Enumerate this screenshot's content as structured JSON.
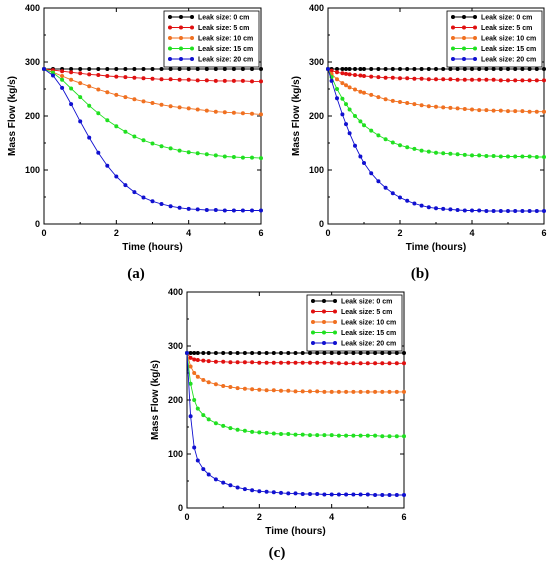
{
  "colors": {
    "0 cm": "#000000",
    "5 cm": "#e01010",
    "10 cm": "#f07020",
    "15 cm": "#20e020",
    "20 cm": "#1010d0"
  },
  "chart_data": [
    {
      "type": "line",
      "panel_label": "(a)",
      "xlabel": "Time (hours)",
      "ylabel": "Mass Flow (kg/s)",
      "xlim": [
        0,
        6
      ],
      "ylim": [
        0,
        400
      ],
      "xticks": [
        0,
        2,
        4,
        6
      ],
      "yticks": [
        0,
        100,
        200,
        300,
        400
      ],
      "legend_position": "top-right",
      "x": [
        0,
        0.25,
        0.5,
        0.75,
        1,
        1.25,
        1.5,
        1.75,
        2,
        2.25,
        2.5,
        2.75,
        3,
        3.25,
        3.5,
        3.75,
        4,
        4.25,
        4.5,
        4.75,
        5,
        5.25,
        5.5,
        5.75,
        6
      ],
      "series": [
        {
          "name": "Leak size: 0 cm",
          "color": "#000000",
          "values": [
            287,
            287,
            287,
            287,
            287,
            287,
            287,
            287,
            287,
            287,
            287,
            287,
            287,
            287,
            287,
            287,
            287,
            287,
            287,
            287,
            287,
            287,
            287,
            287,
            287
          ]
        },
        {
          "name": "Leak size: 5 cm",
          "color": "#e01010",
          "values": [
            287,
            285,
            283,
            281,
            279,
            277,
            276,
            274,
            273,
            272,
            271,
            270,
            269,
            268,
            268,
            267,
            267,
            266,
            266,
            265,
            265,
            265,
            265,
            264,
            264
          ]
        },
        {
          "name": "Leak size: 10 cm",
          "color": "#f07020",
          "values": [
            287,
            281,
            274,
            267,
            261,
            255,
            249,
            244,
            239,
            235,
            231,
            227,
            224,
            221,
            218,
            216,
            214,
            212,
            210,
            208,
            207,
            206,
            205,
            204,
            203
          ]
        },
        {
          "name": "Leak size: 15 cm",
          "color": "#20e020",
          "values": [
            287,
            280,
            267,
            251,
            235,
            219,
            205,
            192,
            181,
            171,
            162,
            155,
            149,
            144,
            140,
            136,
            133,
            131,
            129,
            127,
            125,
            124,
            123,
            123,
            122
          ]
        },
        {
          "name": "Leak size: 20 cm",
          "color": "#1010d0",
          "values": [
            287,
            275,
            252,
            222,
            190,
            160,
            132,
            108,
            88,
            72,
            59,
            49,
            42,
            37,
            33,
            30,
            28,
            27,
            26,
            26,
            25,
            25,
            25,
            25,
            25
          ]
        }
      ]
    },
    {
      "type": "line",
      "panel_label": "(b)",
      "xlabel": "Time (hours)",
      "ylabel": "Mass Flow (kg/s)",
      "xlim": [
        0,
        6
      ],
      "ylim": [
        0,
        400
      ],
      "xticks": [
        0,
        2,
        4,
        6
      ],
      "yticks": [
        0,
        100,
        200,
        300,
        400
      ],
      "legend_position": "top-right",
      "x": [
        0,
        0.1,
        0.25,
        0.4,
        0.5,
        0.6,
        0.75,
        0.9,
        1,
        1.2,
        1.4,
        1.6,
        1.8,
        2,
        2.2,
        2.4,
        2.6,
        2.8,
        3,
        3.2,
        3.4,
        3.6,
        3.8,
        4,
        4.2,
        4.4,
        4.6,
        4.8,
        5,
        5.2,
        5.4,
        5.6,
        5.8,
        6
      ],
      "series": [
        {
          "name": "Leak size: 0 cm",
          "color": "#000000",
          "values": [
            287,
            287,
            287,
            287,
            287,
            287,
            287,
            287,
            287,
            287,
            287,
            287,
            287,
            287,
            287,
            287,
            287,
            287,
            287,
            287,
            287,
            287,
            287,
            287,
            287,
            287,
            287,
            287,
            287,
            287,
            287,
            287,
            287,
            287
          ]
        },
        {
          "name": "Leak size: 5 cm",
          "color": "#e01010",
          "values": [
            287,
            284,
            281,
            279,
            278,
            277,
            276,
            275,
            274,
            273,
            272,
            271,
            271,
            270,
            270,
            269,
            269,
            268,
            268,
            268,
            268,
            267,
            267,
            267,
            267,
            267,
            267,
            266,
            266,
            266,
            266,
            266,
            266,
            266
          ]
        },
        {
          "name": "Leak size: 10 cm",
          "color": "#f07020",
          "values": [
            287,
            278,
            268,
            261,
            257,
            253,
            249,
            245,
            243,
            239,
            235,
            231,
            228,
            226,
            224,
            222,
            220,
            218,
            217,
            216,
            215,
            214,
            213,
            212,
            211,
            211,
            210,
            210,
            209,
            209,
            209,
            208,
            208,
            208
          ]
        },
        {
          "name": "Leak size: 15 cm",
          "color": "#20e020",
          "values": [
            287,
            272,
            250,
            232,
            222,
            212,
            200,
            190,
            183,
            173,
            164,
            157,
            151,
            146,
            142,
            139,
            136,
            134,
            132,
            131,
            130,
            129,
            128,
            127,
            127,
            126,
            126,
            125,
            125,
            125,
            125,
            125,
            124,
            124
          ]
        },
        {
          "name": "Leak size: 20 cm",
          "color": "#1010d0",
          "values": [
            287,
            265,
            233,
            203,
            185,
            168,
            145,
            125,
            113,
            94,
            79,
            67,
            57,
            49,
            43,
            38,
            34,
            31,
            29,
            28,
            27,
            26,
            25,
            25,
            25,
            24,
            24,
            24,
            24,
            24,
            24,
            24,
            24,
            24
          ]
        }
      ]
    },
    {
      "type": "line",
      "panel_label": "(c)",
      "xlabel": "Time (hours)",
      "ylabel": "Mass Flow (kg/s)",
      "xlim": [
        0,
        6
      ],
      "ylim": [
        0,
        400
      ],
      "xticks": [
        0,
        2,
        4,
        6
      ],
      "yticks": [
        0,
        100,
        200,
        300,
        400
      ],
      "legend_position": "top-right",
      "x": [
        0,
        0.1,
        0.2,
        0.3,
        0.45,
        0.6,
        0.8,
        1,
        1.2,
        1.4,
        1.6,
        1.8,
        2,
        2.2,
        2.4,
        2.6,
        2.8,
        3,
        3.2,
        3.4,
        3.6,
        3.8,
        4,
        4.2,
        4.4,
        4.6,
        4.8,
        5,
        5.2,
        5.4,
        5.6,
        5.8,
        6
      ],
      "series": [
        {
          "name": "Leak size: 0 cm",
          "color": "#000000",
          "values": [
            287,
            287,
            287,
            287,
            287,
            287,
            287,
            287,
            287,
            287,
            287,
            287,
            287,
            287,
            287,
            287,
            287,
            287,
            287,
            287,
            287,
            287,
            287,
            287,
            287,
            287,
            287,
            287,
            287,
            287,
            287,
            287,
            287
          ]
        },
        {
          "name": "Leak size: 5 cm",
          "color": "#e01010",
          "values": [
            287,
            278,
            275,
            274,
            273,
            272,
            271,
            271,
            270,
            270,
            270,
            270,
            269,
            269,
            269,
            269,
            269,
            269,
            269,
            269,
            269,
            269,
            269,
            268,
            268,
            268,
            268,
            268,
            268,
            268,
            268,
            268,
            268
          ]
        },
        {
          "name": "Leak size: 10 cm",
          "color": "#f07020",
          "values": [
            287,
            262,
            250,
            243,
            237,
            233,
            229,
            226,
            224,
            222,
            221,
            220,
            219,
            218,
            218,
            217,
            217,
            216,
            216,
            216,
            216,
            215,
            215,
            215,
            215,
            215,
            215,
            215,
            215,
            215,
            215,
            215,
            215
          ]
        },
        {
          "name": "Leak size: 15 cm",
          "color": "#20e020",
          "values": [
            287,
            230,
            200,
            184,
            172,
            164,
            157,
            152,
            148,
            145,
            143,
            141,
            140,
            139,
            138,
            137,
            137,
            136,
            136,
            135,
            135,
            135,
            135,
            134,
            134,
            134,
            134,
            134,
            134,
            133,
            133,
            133,
            133
          ]
        },
        {
          "name": "Leak size: 20 cm",
          "color": "#1010d0",
          "values": [
            287,
            170,
            112,
            88,
            72,
            62,
            53,
            47,
            42,
            38,
            35,
            33,
            31,
            30,
            29,
            28,
            27,
            27,
            26,
            26,
            26,
            25,
            25,
            25,
            25,
            25,
            25,
            25,
            24,
            24,
            24,
            24,
            24
          ]
        }
      ]
    }
  ]
}
